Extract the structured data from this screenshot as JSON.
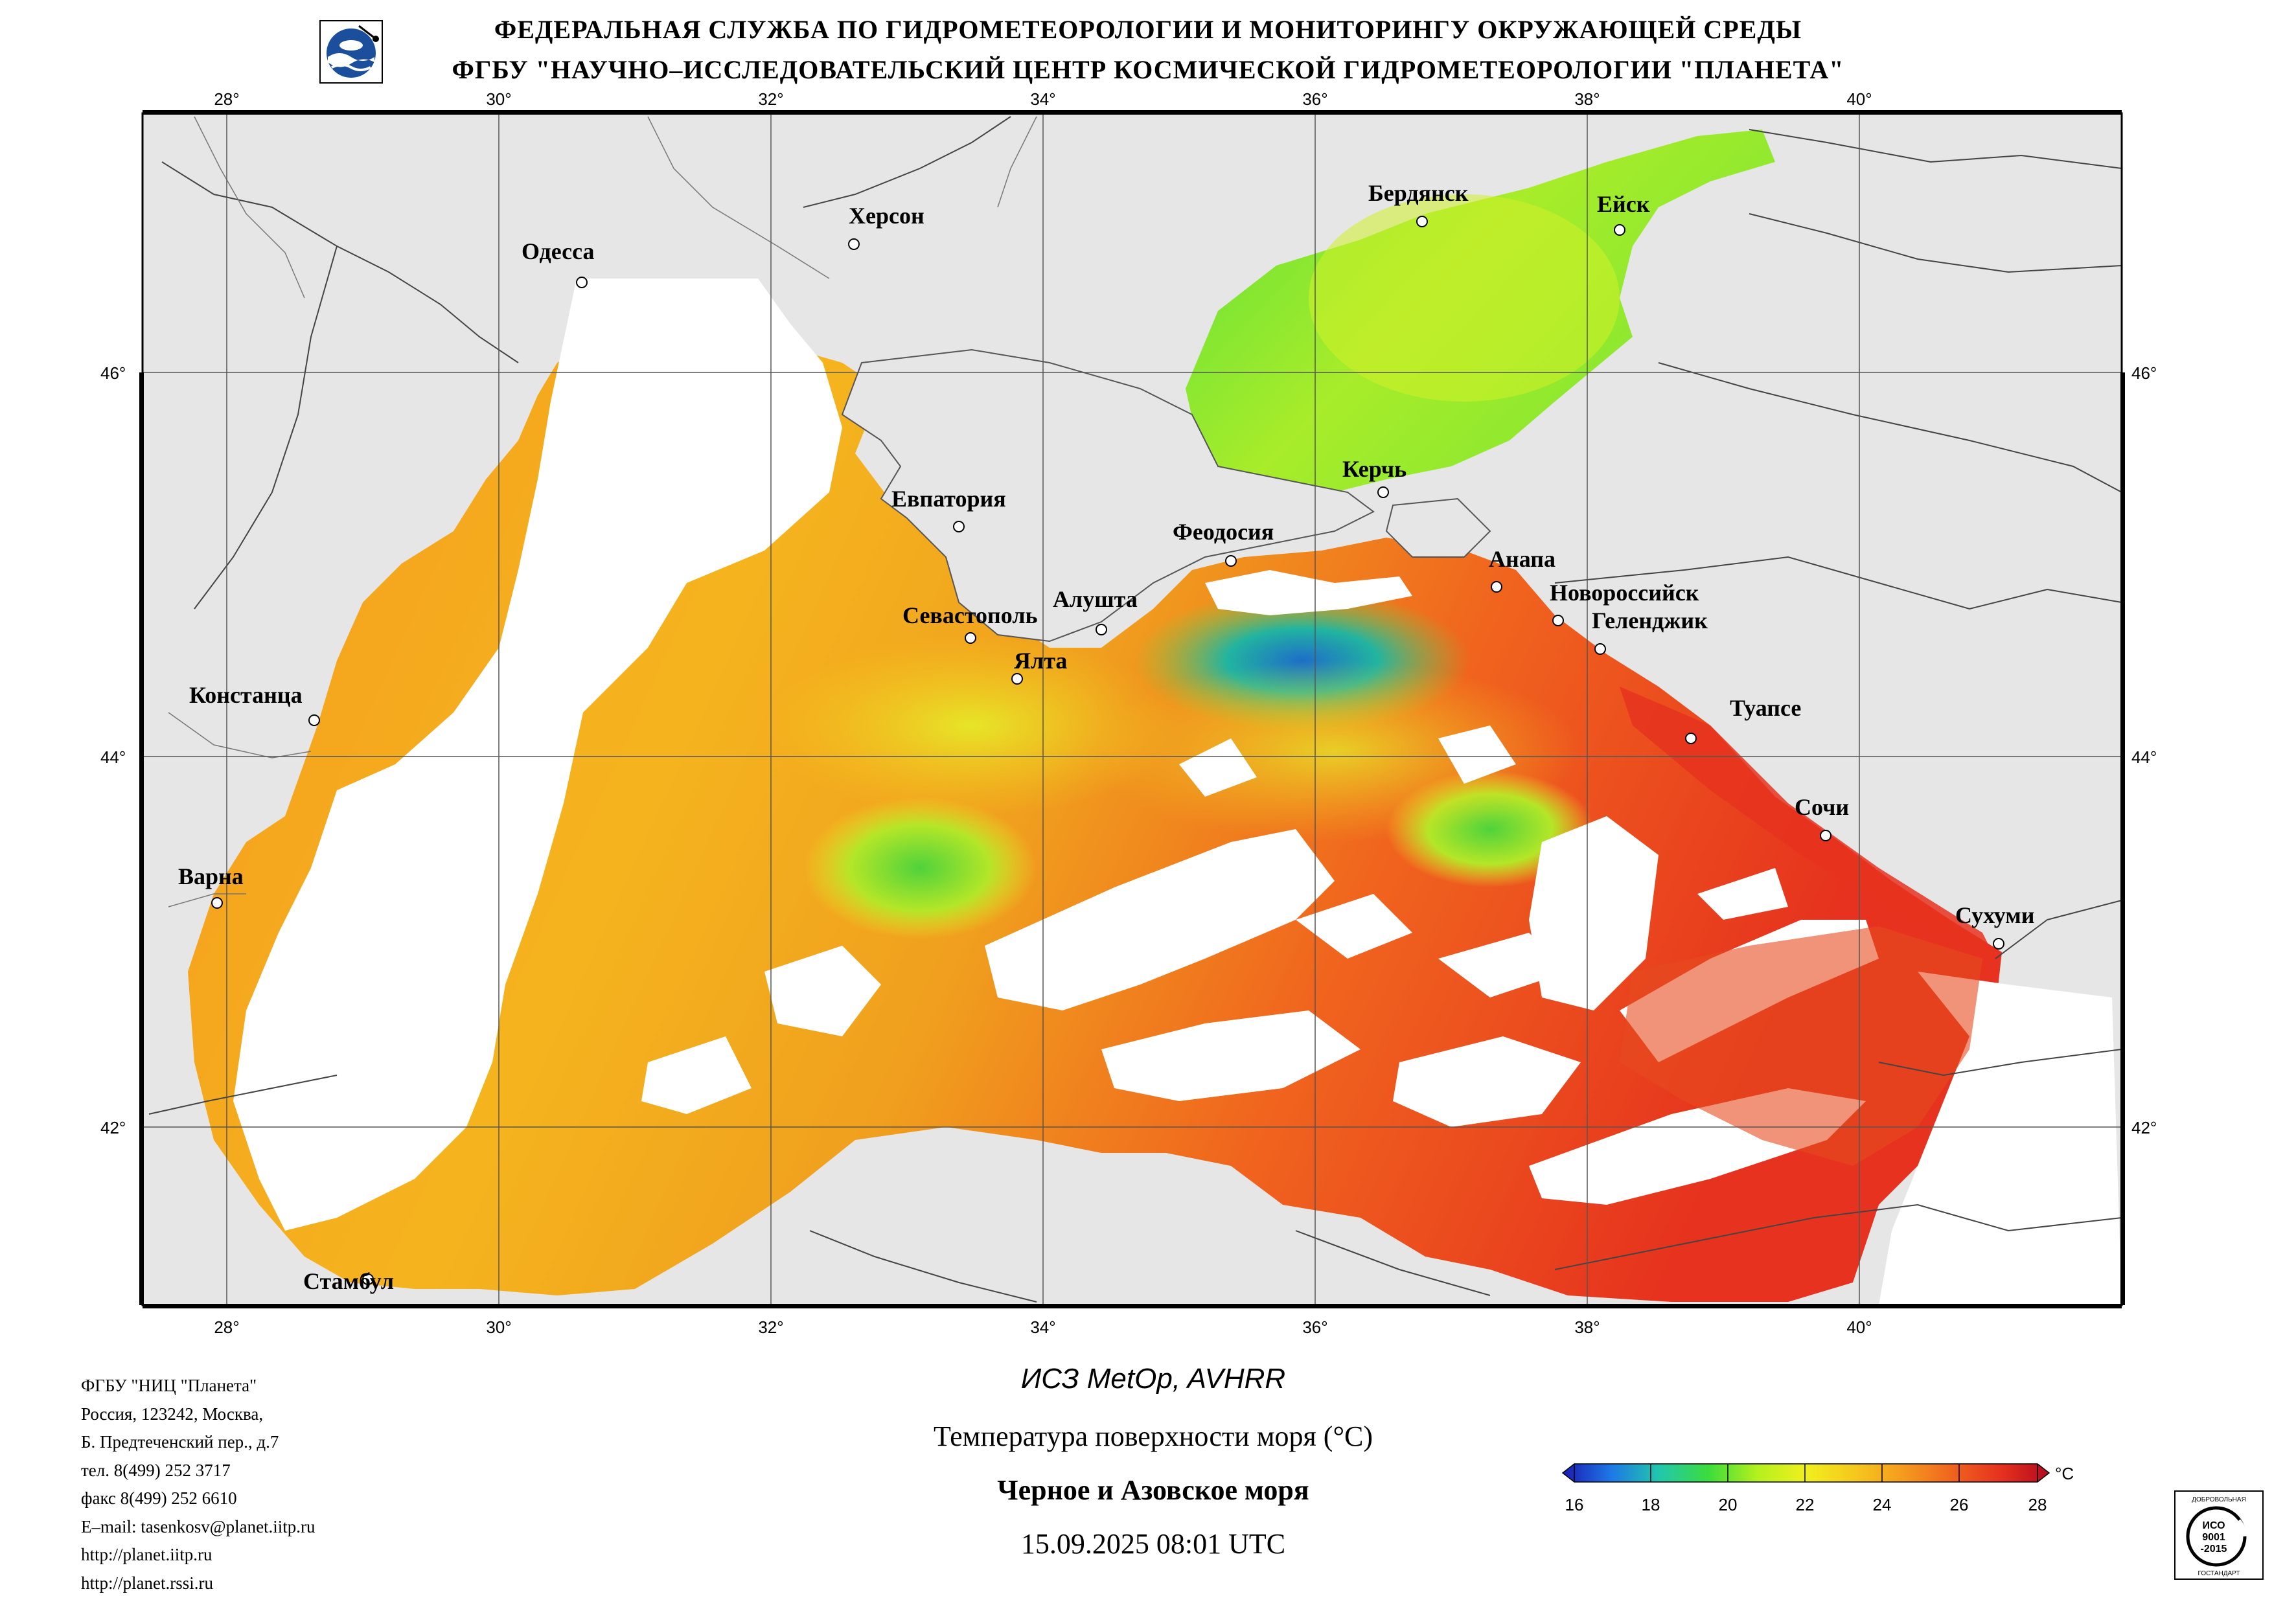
{
  "header": {
    "line1": "ФЕДЕРАЛЬНАЯ СЛУЖБА ПО ГИДРОМЕТЕОРОЛОГИИ И МОНИТОРИНГУ ОКРУЖАЮЩЕЙ СРЕДЫ",
    "line2": "ФГБУ \"НАУЧНО–ИССЛЕДОВАТЕЛЬСКИЙ ЦЕНТР КОСМИЧЕСКОЙ ГИДРОМЕТЕОРОЛОГИИ \"ПЛАНЕТА\""
  },
  "map": {
    "lon_ticks": [
      "28°",
      "30°",
      "32°",
      "34°",
      "36°",
      "38°",
      "40°"
    ],
    "lat_ticks": [
      "46°",
      "44°",
      "42°"
    ],
    "cities": [
      "Херсон",
      "Одесса",
      "Бердянск",
      "Ейск",
      "Евпатория",
      "Керчь",
      "Феодосия",
      "Анапа",
      "Новороссийск",
      "Геленджик",
      "Севастополь",
      "Алушта",
      "Ялта",
      "Констанца",
      "Туапсе",
      "Сочи",
      "Варна",
      "Сухуми",
      "Стамбул"
    ],
    "colors": {
      "land": "#e6e6e6",
      "clouds": "#ffffff",
      "border": "#000000"
    }
  },
  "footer": {
    "org_lines": [
      "ФГБУ \"НИЦ \"Планета\"",
      "Россия, 123242, Москва,",
      "Б. Предтеченский пер., д.7",
      "тел. 8(499) 252 3717",
      "факс 8(499) 252 6610",
      "E–mail: tasenkosv@planet.iitp.ru",
      "http://planet.iitp.ru",
      "http://planet.rssi.ru"
    ],
    "satellite": "ИСЗ MetOp, AVHRR",
    "product": "Температура поверхности моря (°C)",
    "region": "Черное и Азовское моря",
    "datetime": "15.09.2025 08:01 UTC"
  },
  "colorbar": {
    "unit": "°C",
    "labels": [
      "16",
      "18",
      "20",
      "22",
      "24",
      "26",
      "28"
    ],
    "stops": [
      "#1a1ab4",
      "#1e78e6",
      "#22c8aa",
      "#3cdc3c",
      "#b4f01e",
      "#f0f01e",
      "#f5c81e",
      "#f59b1e",
      "#f0641e",
      "#e6321e",
      "#b40a1e"
    ]
  },
  "stamp": {
    "top_text": "ДОБРОВОЛЬНАЯ",
    "line1": "ИСО",
    "line2": "9001",
    "line3": "-2015",
    "bottom_text": "ГОСТАНДАРТ"
  }
}
